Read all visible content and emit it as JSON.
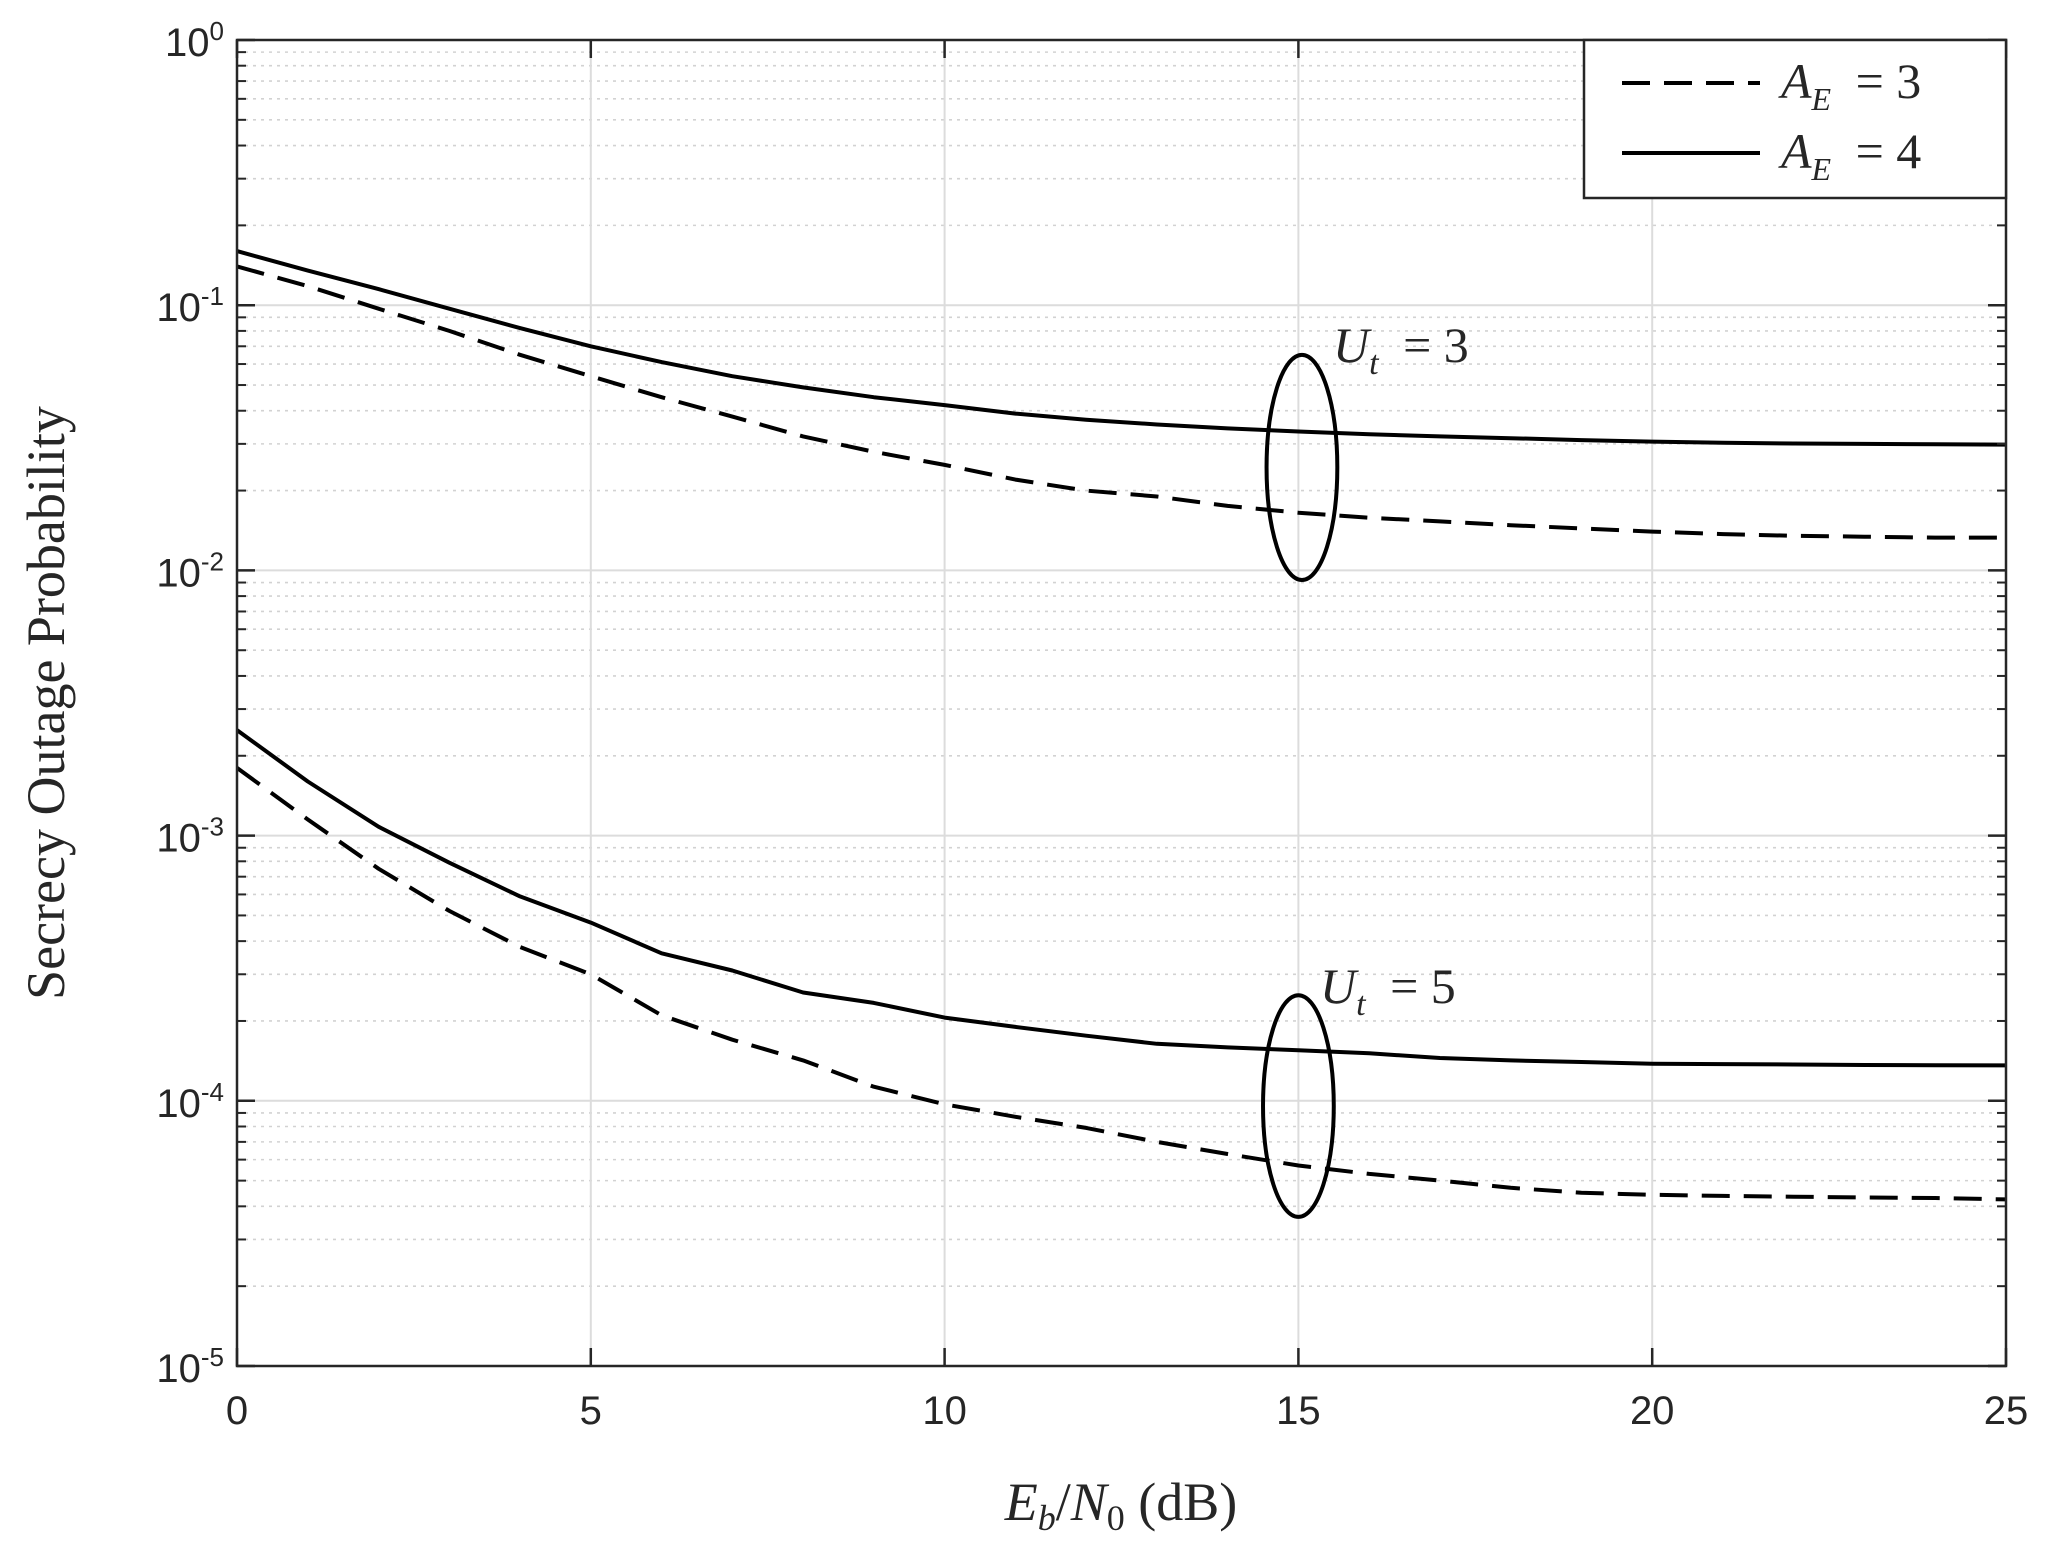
{
  "chart_data": {
    "type": "line",
    "xlabel": "E_b/N_0 (dB)",
    "ylabel": "Secrecy Outage Probability",
    "xlim": [
      0,
      25
    ],
    "ylim": [
      1e-05,
      1
    ],
    "yscale": "log",
    "grid": "on",
    "legend_position": "top-right",
    "x_ticks": [
      "0",
      "5",
      "10",
      "15",
      "20",
      "25"
    ],
    "y_ticks": [
      {
        "base": "10",
        "exp": "0"
      },
      {
        "base": "10",
        "exp": "-1"
      },
      {
        "base": "10",
        "exp": "-2"
      },
      {
        "base": "10",
        "exp": "-3"
      },
      {
        "base": "10",
        "exp": "-4"
      },
      {
        "base": "10",
        "exp": "-5"
      }
    ],
    "legend": [
      {
        "series": "A_E = 3",
        "style": "dashed"
      },
      {
        "series": "A_E = 4",
        "style": "solid"
      }
    ],
    "annotations": [
      {
        "text": "U_t = 3",
        "group": "upper"
      },
      {
        "text": "U_t = 5",
        "group": "lower"
      }
    ],
    "series": [
      {
        "name": "A_E = 3",
        "group": "U_t = 3",
        "style": "dashed",
        "x": [
          0,
          1,
          2,
          3,
          4,
          5,
          6,
          7,
          8,
          9,
          10,
          11,
          12,
          13,
          14,
          15,
          16,
          17,
          18,
          19,
          20,
          21,
          22,
          23,
          24,
          25
        ],
        "y": [
          0.14,
          0.118,
          0.097,
          0.08,
          0.065,
          0.054,
          0.045,
          0.038,
          0.032,
          0.028,
          0.025,
          0.022,
          0.02,
          0.019,
          0.0175,
          0.0165,
          0.0158,
          0.0153,
          0.0148,
          0.0144,
          0.014,
          0.0137,
          0.0135,
          0.0134,
          0.0133,
          0.0133
        ]
      },
      {
        "name": "A_E = 4",
        "group": "U_t = 3",
        "style": "solid",
        "x": [
          0,
          1,
          2,
          3,
          4,
          5,
          6,
          7,
          8,
          9,
          10,
          11,
          12,
          13,
          14,
          15,
          16,
          17,
          18,
          19,
          20,
          21,
          22,
          23,
          24,
          25
        ],
        "y": [
          0.16,
          0.135,
          0.115,
          0.097,
          0.082,
          0.07,
          0.061,
          0.054,
          0.049,
          0.045,
          0.042,
          0.039,
          0.037,
          0.0355,
          0.0343,
          0.0334,
          0.0326,
          0.032,
          0.0315,
          0.031,
          0.0306,
          0.0303,
          0.0301,
          0.03,
          0.0299,
          0.0298
        ]
      },
      {
        "name": "A_E = 3",
        "group": "U_t = 5",
        "style": "dashed",
        "x": [
          0,
          1,
          2,
          3,
          4,
          5,
          6,
          7,
          8,
          9,
          10,
          11,
          12,
          13,
          14,
          15,
          16,
          17,
          18,
          19,
          20,
          21,
          22,
          23,
          24,
          25
        ],
        "y": [
          0.0018,
          0.00115,
          0.00075,
          0.00052,
          0.00038,
          0.0003,
          0.00021,
          0.00017,
          0.000142,
          0.000113,
          9.7e-05,
          8.7e-05,
          7.9e-05,
          7e-05,
          6.3e-05,
          5.7e-05,
          5.3e-05,
          5e-05,
          4.7e-05,
          4.5e-05,
          4.42e-05,
          4.38e-05,
          4.35e-05,
          4.32e-05,
          4.3e-05,
          4.25e-05
        ]
      },
      {
        "name": "A_E = 4",
        "group": "U_t = 5",
        "style": "solid",
        "x": [
          0,
          1,
          2,
          3,
          4,
          5,
          6,
          7,
          8,
          9,
          10,
          11,
          12,
          13,
          14,
          15,
          16,
          17,
          18,
          19,
          20,
          21,
          22,
          23,
          24,
          25
        ],
        "y": [
          0.0025,
          0.0016,
          0.00108,
          0.00079,
          0.00059,
          0.00047,
          0.00036,
          0.00031,
          0.000256,
          0.000234,
          0.000206,
          0.00019,
          0.000176,
          0.000164,
          0.000159,
          0.000155,
          0.000151,
          0.000145,
          0.000142,
          0.00014,
          0.000138,
          0.0001375,
          0.000137,
          0.0001365,
          0.0001362,
          0.000136
        ]
      }
    ],
    "ellipses": [
      {
        "group": "U_t = 3",
        "x_center": 15.05,
        "y_top": 0.065,
        "y_bottom": 0.0092,
        "x_halfwidth": 0.5
      },
      {
        "group": "U_t = 5",
        "x_center": 15.0,
        "y_top": 0.00025,
        "y_bottom": 3.65e-05,
        "x_halfwidth": 0.5
      }
    ]
  }
}
